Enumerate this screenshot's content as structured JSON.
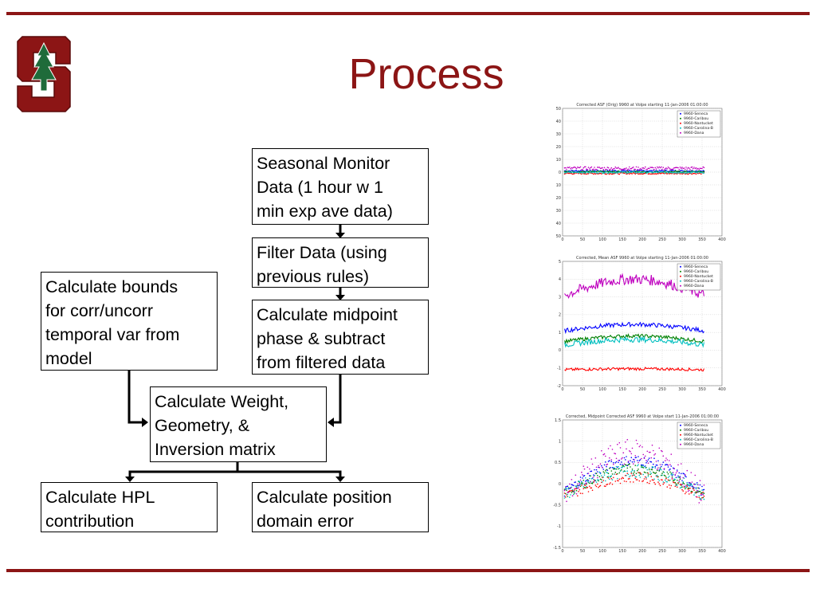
{
  "slide": {
    "title": "Process"
  },
  "colors": {
    "accent": "#8c1515",
    "series": [
      "#0000ff",
      "#008000",
      "#ff0000",
      "#00bfbf",
      "#bf00bf"
    ]
  },
  "boxes": {
    "seasonal": "Seasonal Monitor\nData  (1 hour w 1\nmin exp ave data)",
    "filter": "Filter Data (using\nprevious rules)",
    "bounds": "Calculate bounds\nfor corr/uncorr\ntemporal var from\nmodel",
    "midpoint": "Calculate midpoint\nphase & subtract\nfrom filtered data",
    "weight": "Calculate Weight,\nGeometry, &\nInversion matrix",
    "hpl": "Calculate HPL\ncontribution",
    "position": "Calculate position\ndomain error"
  },
  "chart_data": [
    {
      "type": "scatter",
      "title": "Corrected ASF (Orig) 9960 at Volpe starting 11-Jan-2006 01:00:00",
      "xlim": [
        0,
        400
      ],
      "ylim": [
        -50,
        50
      ],
      "xticks": [
        "0",
        "50",
        "100",
        "150",
        "200",
        "250",
        "300",
        "350",
        "400"
      ],
      "yticks": [
        "50",
        "40",
        "30",
        "20",
        "10",
        "0",
        "10",
        "20",
        "30",
        "40",
        "50"
      ],
      "legend": [
        "9960-Seneca",
        "9960-Caribou",
        "9960-Nantucket",
        "9960-Carolina-B",
        "9960-Dana"
      ],
      "legend_position": "top-right",
      "grid": true,
      "series": [
        {
          "name": "9960-Seneca",
          "level": 1.0,
          "noise": 0.6
        },
        {
          "name": "9960-Caribou",
          "level": 0.3,
          "noise": 0.6
        },
        {
          "name": "9960-Nantucket",
          "level": -1.0,
          "noise": 0.6
        },
        {
          "name": "9960-Carolina-B",
          "level": -0.2,
          "noise": 0.6
        },
        {
          "name": "9960-Dana",
          "level": 3.0,
          "noise": 1.2
        }
      ]
    },
    {
      "type": "line",
      "title": "Corrected, Mean ASF 9960 at Volpe starting 11-Jan-2006 01:00:00",
      "xlim": [
        0,
        400
      ],
      "ylim": [
        -2,
        5
      ],
      "xticks": [
        "0",
        "50",
        "100",
        "150",
        "200",
        "250",
        "300",
        "350",
        "400"
      ],
      "yticks": [
        "5",
        "4",
        "3",
        "2",
        "1",
        "0",
        "-1",
        "-2"
      ],
      "legend": [
        "9960-Seneca",
        "9960-Caribou",
        "9960-Nantucket",
        "9960-Carolina-B",
        "9960-Dana"
      ],
      "legend_position": "top-right",
      "grid": true,
      "series": [
        {
          "name": "9960-Seneca",
          "level": 1.1,
          "bump": 0.35,
          "noise": 0.12
        },
        {
          "name": "9960-Caribou",
          "level": 0.5,
          "bump": 0.3,
          "noise": 0.1
        },
        {
          "name": "9960-Nantucket",
          "level": -1.1,
          "bump": 0.05,
          "noise": 0.08
        },
        {
          "name": "9960-Carolina-B",
          "level": 0.3,
          "bump": 0.3,
          "noise": 0.15
        },
        {
          "name": "9960-Dana",
          "level": 3.1,
          "bump": 0.9,
          "noise": 0.3
        }
      ]
    },
    {
      "type": "scatter",
      "title": "Corrected, Midpoint Corrected ASF 9960 at Volpe start 11-Jan-2006 01:00:00",
      "xlim": [
        0,
        400
      ],
      "ylim": [
        -1.5,
        1.5
      ],
      "xticks": [
        "0",
        "50",
        "100",
        "150",
        "200",
        "250",
        "300",
        "350",
        "400"
      ],
      "yticks": [
        "1.5",
        "1",
        "0.5",
        "0",
        "-0.5",
        "-1",
        "-1.5"
      ],
      "legend": [
        "9960-Seneca",
        "9960-Caribou",
        "9960-Nantucket",
        "9960-Carolina-B",
        "9960-Dana"
      ],
      "legend_position": "top-right",
      "grid": true,
      "series": [
        {
          "name": "9960-Seneca",
          "level": -0.2,
          "bump": 0.75,
          "noise": 0.12
        },
        {
          "name": "9960-Caribou",
          "level": -0.25,
          "bump": 0.6,
          "noise": 0.12
        },
        {
          "name": "9960-Nantucket",
          "level": -0.3,
          "bump": 0.45,
          "noise": 0.12
        },
        {
          "name": "9960-Carolina-B",
          "level": -0.25,
          "bump": 0.55,
          "noise": 0.15
        },
        {
          "name": "9960-Dana",
          "level": -0.3,
          "bump": 1.05,
          "noise": 0.3
        }
      ]
    }
  ]
}
